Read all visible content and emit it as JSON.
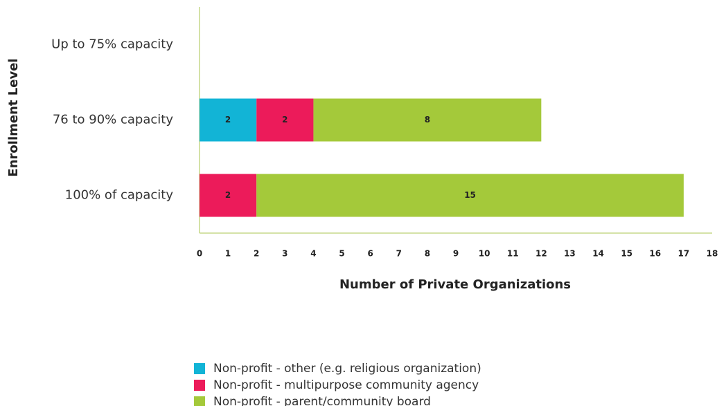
{
  "chart_data": {
    "type": "stacked_barh",
    "xlabel": "Number of Private Organizations",
    "ylabel": "Enrollment Level",
    "categories": [
      "Up to 75% capacity",
      "76 to 90% capacity",
      "100% of capacity"
    ],
    "series": [
      {
        "name": "Non-profit - other (e.g. religious organization)",
        "color": "#12b4d6",
        "values": [
          null,
          2,
          null
        ]
      },
      {
        "name": "Non-profit - multipurpose community agency",
        "color": "#ec1b5a",
        "values": [
          null,
          2,
          2
        ]
      },
      {
        "name": "Non-profit - parent/community board",
        "color": "#a4c93a",
        "values": [
          null,
          8,
          15
        ]
      }
    ],
    "xlim": [
      0,
      18
    ],
    "xticks": [
      0,
      1,
      2,
      3,
      4,
      5,
      6,
      7,
      8,
      9,
      10,
      11,
      12,
      13,
      14,
      15,
      16,
      17,
      18
    ],
    "grid": false,
    "legend": "bottom"
  }
}
